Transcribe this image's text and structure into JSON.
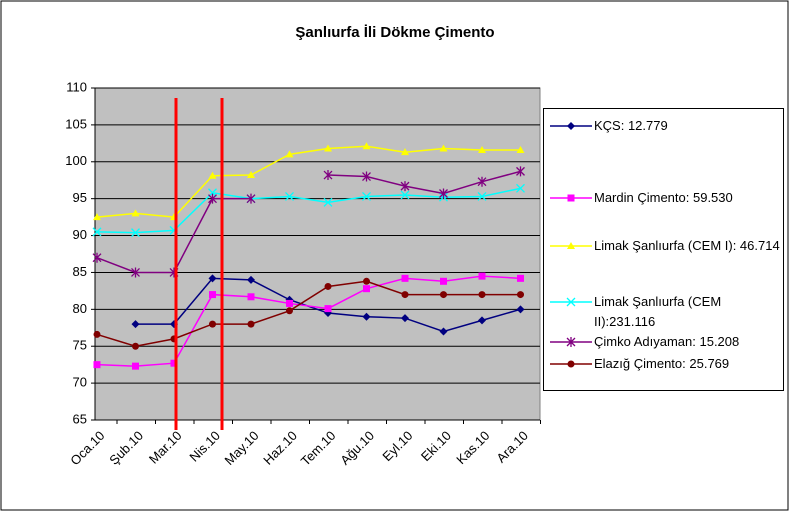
{
  "chart_data": {
    "type": "line",
    "title": "Şanlıurfa İli Dökme Çimento",
    "categories": [
      "Oca.10",
      "Şub.10",
      "Mar.10",
      "Nis.10",
      "May.10",
      "Haz.10",
      "Tem.10",
      "Ağu.10",
      "Eyl.10",
      "Eki.10",
      "Kas.10",
      "Ara.10"
    ],
    "ylim": [
      65,
      110
    ],
    "yticks": [
      65,
      70,
      75,
      80,
      85,
      90,
      95,
      100,
      105,
      110
    ],
    "grid": true,
    "series": [
      {
        "name": "KÇS: 12.779",
        "color": "#000080",
        "marker": "diamond",
        "values": [
          null,
          78,
          78,
          84.2,
          84,
          81.3,
          79.5,
          79,
          78.8,
          77,
          78.5,
          80
        ]
      },
      {
        "name": "Mardin Çimento: 59.530",
        "color": "#FF00FF",
        "marker": "square",
        "values": [
          72.5,
          72.3,
          72.7,
          82,
          81.7,
          80.8,
          80.1,
          82.8,
          84.2,
          83.8,
          84.5,
          84.2
        ]
      },
      {
        "name": "Limak Şanlıurfa (CEM I): 46.714",
        "color": "#FFFF00",
        "marker": "triangle",
        "values": [
          92.5,
          93,
          92.5,
          98.1,
          98.2,
          101,
          101.8,
          102.1,
          101.3,
          101.8,
          101.6,
          101.6
        ]
      },
      {
        "name": "Limak Şanlıurfa (CEM II):231.116",
        "color": "#00FFFF",
        "marker": "x",
        "values": [
          90.5,
          90.4,
          90.7,
          95.8,
          95,
          95.3,
          94.5,
          95.3,
          95.5,
          95.2,
          95.3,
          96.4
        ]
      },
      {
        "name": "Çimko Adıyaman: 15.208",
        "color": "#800080",
        "marker": "asterisk",
        "values": [
          87,
          85,
          85,
          95,
          95,
          null,
          98.2,
          98,
          96.7,
          95.7,
          97.3,
          98.7
        ]
      },
      {
        "name": "Elazığ Çimento: 25.769",
        "color": "#800000",
        "marker": "circle",
        "values": [
          76.6,
          75,
          76,
          78,
          78,
          79.8,
          83.1,
          83.8,
          82,
          82,
          82,
          82
        ]
      }
    ]
  }
}
